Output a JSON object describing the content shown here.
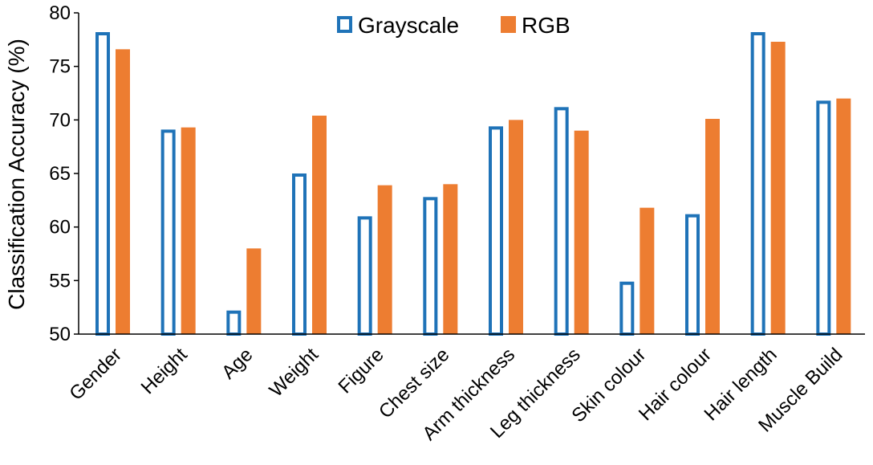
{
  "chart_data": {
    "type": "bar",
    "title": "",
    "xlabel": "",
    "ylabel": "Classification  Accuracy (%)",
    "ylim": [
      50,
      80
    ],
    "yticks": [
      50,
      55,
      60,
      65,
      70,
      75,
      80
    ],
    "grid": false,
    "legend_position": "top-center",
    "categories": [
      "Gender",
      "Height",
      "Age",
      "Weight",
      "Figure",
      "Chest size",
      "Arm thickness",
      "Leg thickness",
      "Skin colour",
      "Hair colour",
      "Hair length",
      "Muscle Build"
    ],
    "series": [
      {
        "name": "Grayscale",
        "style": "outline",
        "color": "#1F73B8",
        "values": [
          78.2,
          69.1,
          52.2,
          65.0,
          61.0,
          62.8,
          69.4,
          71.2,
          54.9,
          61.2,
          78.2,
          71.8
        ]
      },
      {
        "name": "RGB",
        "style": "filled",
        "color": "#ED7D31",
        "values": [
          76.6,
          69.3,
          58.0,
          70.4,
          63.9,
          64.0,
          70.0,
          69.0,
          61.8,
          70.1,
          77.3,
          72.0
        ]
      }
    ]
  }
}
